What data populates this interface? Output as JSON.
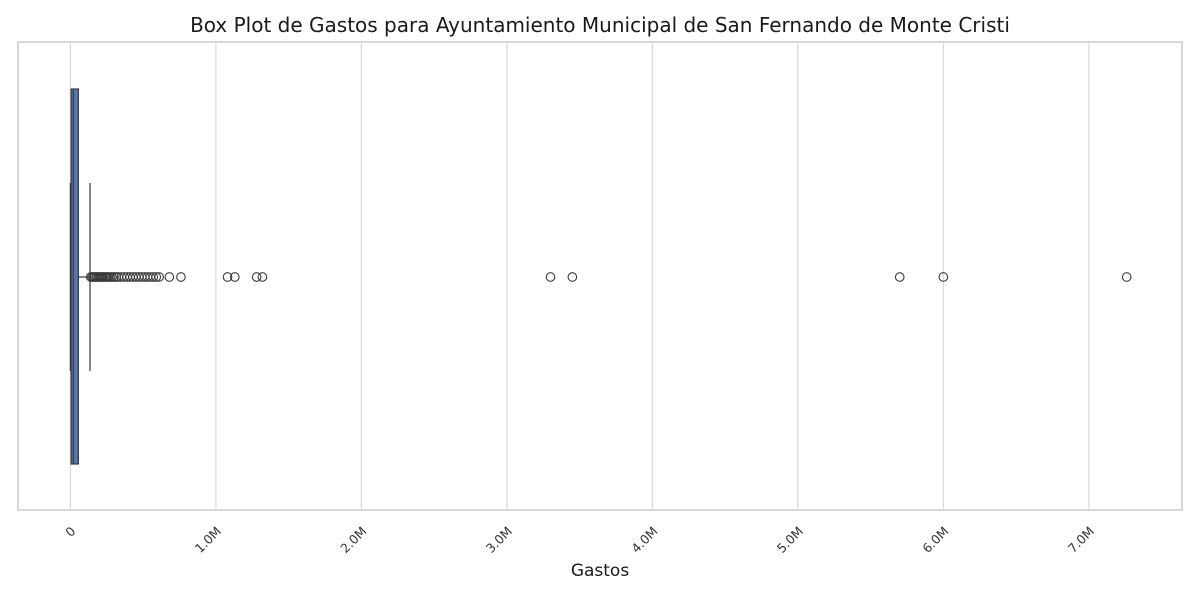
{
  "chart_data": {
    "type": "box",
    "orientation": "horizontal",
    "title": "Box Plot de Gastos para Ayuntamiento Municipal de San Fernando de Monte Cristi",
    "xlabel": "Gastos",
    "ylabel": "",
    "xlim": [
      -360000,
      7640000
    ],
    "x_ticks": [
      {
        "value": 0,
        "label": "0"
      },
      {
        "value": 1000000,
        "label": "1.0M"
      },
      {
        "value": 2000000,
        "label": "2.0M"
      },
      {
        "value": 3000000,
        "label": "3.0M"
      },
      {
        "value": 4000000,
        "label": "4.0M"
      },
      {
        "value": 5000000,
        "label": "5.0M"
      },
      {
        "value": 6000000,
        "label": "6.0M"
      },
      {
        "value": 7000000,
        "label": "7.0M"
      }
    ],
    "grid": true,
    "box": {
      "whisker_low": 0,
      "q1": 5000,
      "median": 20000,
      "q3": 55000,
      "whisker_high": 135000,
      "color": "#5475b5"
    },
    "outliers": [
      140000,
      150000,
      160000,
      170000,
      180000,
      190000,
      200000,
      210000,
      220000,
      230000,
      240000,
      250000,
      260000,
      270000,
      285000,
      300000,
      315000,
      330000,
      350000,
      370000,
      390000,
      410000,
      430000,
      450000,
      470000,
      490000,
      510000,
      530000,
      550000,
      570000,
      590000,
      610000,
      680000,
      760000,
      1080000,
      1130000,
      1280000,
      1320000,
      3300000,
      3450000,
      5700000,
      6000000,
      7260000
    ]
  }
}
